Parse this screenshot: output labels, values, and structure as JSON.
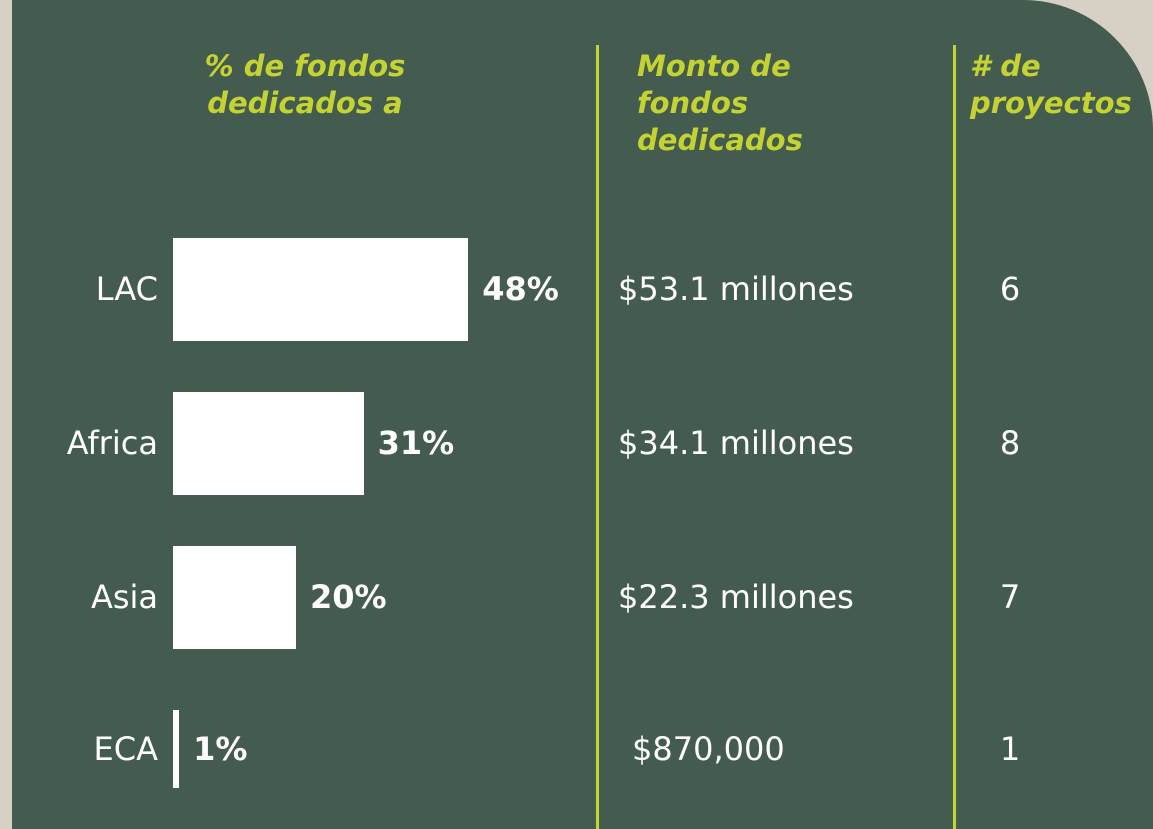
{
  "chart_data": {
    "type": "bar",
    "headers": [
      "% de fondos dedicados a",
      "Monto de fondos dedicados",
      "# de proyectos"
    ],
    "categories": [
      "LAC",
      "Africa",
      "Asia",
      "ECA"
    ],
    "values": [
      48,
      31,
      20,
      1
    ],
    "value_labels": [
      "48%",
      "31%",
      "20%",
      "1%"
    ],
    "amounts": [
      "$53.1 millones",
      "$34.1 millones",
      "$22.3 millones",
      "$870,000"
    ],
    "projects": [
      6,
      8,
      7,
      1
    ],
    "color": "#ffffff"
  }
}
